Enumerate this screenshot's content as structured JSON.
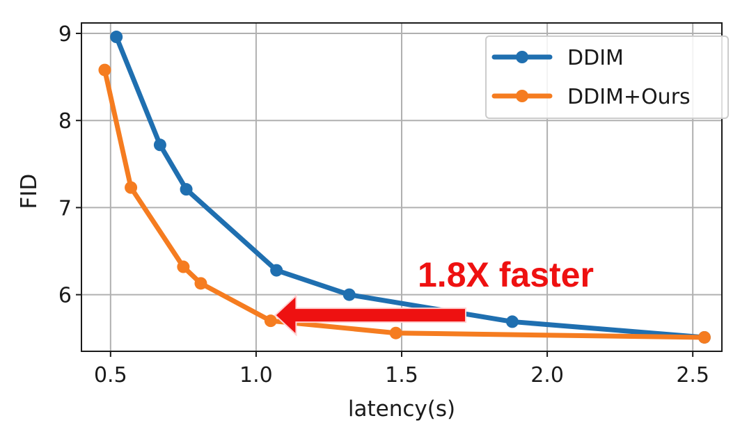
{
  "chart_data": {
    "type": "line",
    "title": "",
    "xlabel": "latency(s)",
    "ylabel": "FID",
    "xlim": [
      0.4,
      2.6
    ],
    "ylim": [
      5.35,
      9.12
    ],
    "xticks": [
      0.5,
      1.0,
      1.5,
      2.0,
      2.5
    ],
    "xtick_labels": [
      "0.5",
      "1.0",
      "1.5",
      "2.0",
      "2.5"
    ],
    "yticks": [
      6,
      7,
      8,
      9
    ],
    "ytick_labels": [
      "6",
      "7",
      "8",
      "9"
    ],
    "grid": true,
    "legend_position": "top-right",
    "series": [
      {
        "name": "DDIM",
        "color": "#1f6fb0",
        "x": [
          0.52,
          0.67,
          0.76,
          1.07,
          1.32,
          1.88,
          2.54
        ],
        "y": [
          8.96,
          7.72,
          7.21,
          6.28,
          6.0,
          5.69,
          5.51
        ]
      },
      {
        "name": "DDIM+Ours",
        "color": "#f57c20",
        "x": [
          0.48,
          0.57,
          0.75,
          0.81,
          1.05,
          1.48,
          2.54
        ],
        "y": [
          8.58,
          7.23,
          6.32,
          6.13,
          5.7,
          5.56,
          5.51
        ]
      }
    ],
    "annotation": {
      "text": "1.8X faster",
      "color": "#ee1111",
      "arrow_from": [
        1.72,
        5.78
      ],
      "arrow_to": [
        1.08,
        5.78
      ]
    }
  }
}
